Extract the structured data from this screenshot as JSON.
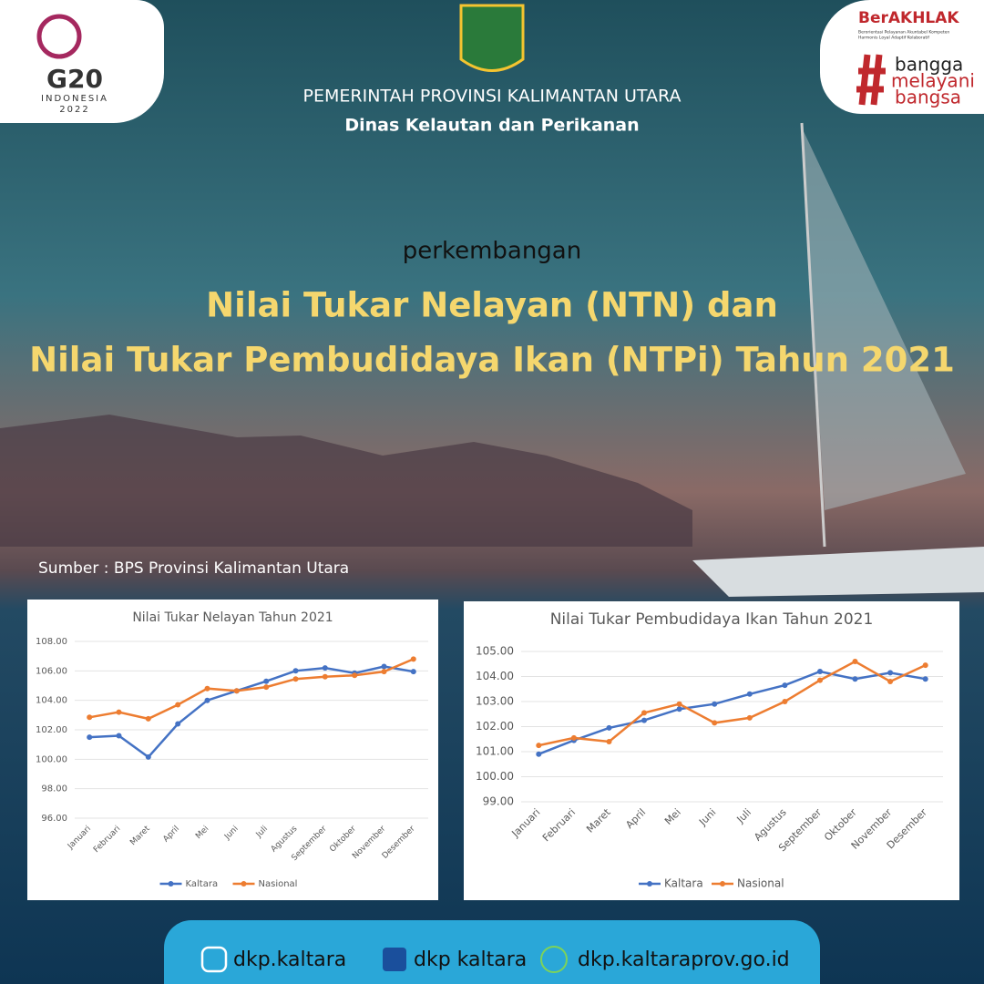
{
  "header": {
    "org": "PEMERINTAH PROVINSI KALIMANTAN UTARA",
    "dept": "Dinas Kelautan dan Perikanan",
    "g20": "G20",
    "g20_country": "INDONESIA",
    "g20_year": "2022",
    "berakhlak": "BerAKHLAK",
    "berakhlak_line1": "Berorientasi Pelayanan Akuntabel Kompeten",
    "berakhlak_line2": "Harmonis Loyal Adaptif Kolaboratif",
    "bangga": [
      "bangga",
      "melayani",
      "bangsa"
    ]
  },
  "intro": "perkembangan",
  "title_lines": [
    "Nilai Tukar Nelayan (NTN) dan",
    "Nilai Tukar Pembudidaya Ikan (NTPi) Tahun 2021"
  ],
  "source": "Sumber : BPS Provinsi Kalimantan Utara",
  "footer": {
    "instagram": "dkp.kaltara",
    "facebook": "dkp kaltara",
    "website": "dkp.kaltaraprov.go.id"
  },
  "chart_data": [
    {
      "type": "line",
      "title": "Nilai Tukar Nelayan Tahun 2021",
      "categories": [
        "Januari",
        "Februari",
        "Maret",
        "April",
        "Mei",
        "Juni",
        "Juli",
        "Agustus",
        "September",
        "Oktober",
        "November",
        "Desember"
      ],
      "series": [
        {
          "name": "Kaltara",
          "color": "#4472c4",
          "values": [
            101.5,
            101.6,
            100.15,
            102.4,
            104.0,
            104.65,
            105.3,
            106.0,
            106.2,
            105.85,
            106.3,
            105.95
          ]
        },
        {
          "name": "Nasional",
          "color": "#ed7d31",
          "values": [
            102.85,
            103.2,
            102.75,
            103.7,
            104.8,
            104.65,
            104.9,
            105.45,
            105.6,
            105.7,
            105.95,
            106.8
          ]
        }
      ],
      "ylim": [
        96,
        108
      ],
      "yticks": [
        {
          "value": 96,
          "label": "96.00"
        },
        {
          "value": 98,
          "label": "98.00"
        },
        {
          "value": 100,
          "label": "100.00"
        },
        {
          "value": 102,
          "label": "102.00"
        },
        {
          "value": 104,
          "label": "104.00"
        },
        {
          "value": 106,
          "label": "106.00"
        },
        {
          "value": 108,
          "label": "108.00"
        }
      ],
      "grid": true,
      "legend": "bottom"
    },
    {
      "type": "line",
      "title": "Nilai Tukar Pembudidaya Ikan Tahun 2021",
      "categories": [
        "Januari",
        "Februari",
        "Maret",
        "April",
        "Mei",
        "Juni",
        "Juli",
        "Agustus",
        "September",
        "Oktober",
        "November",
        "Desember"
      ],
      "series": [
        {
          "name": "Kaltara",
          "color": "#4472c4",
          "values": [
            100.9,
            101.45,
            101.95,
            102.25,
            102.7,
            102.9,
            103.3,
            103.65,
            104.2,
            103.9,
            104.15,
            103.9
          ]
        },
        {
          "name": "Nasional",
          "color": "#ed7d31",
          "values": [
            101.25,
            101.55,
            101.4,
            102.55,
            102.9,
            102.15,
            102.35,
            103.0,
            103.85,
            104.6,
            103.8,
            104.45
          ]
        }
      ],
      "ylim": [
        99,
        105
      ],
      "yticks": [
        {
          "value": 99,
          "label": "99.00"
        },
        {
          "value": 100,
          "label": "100.00"
        },
        {
          "value": 101,
          "label": "101.00"
        },
        {
          "value": 102,
          "label": "102.00"
        },
        {
          "value": 103,
          "label": "103.00"
        },
        {
          "value": 104,
          "label": "104.00"
        },
        {
          "value": 105,
          "label": "105.00"
        }
      ],
      "grid": true,
      "legend": "bottom"
    }
  ]
}
